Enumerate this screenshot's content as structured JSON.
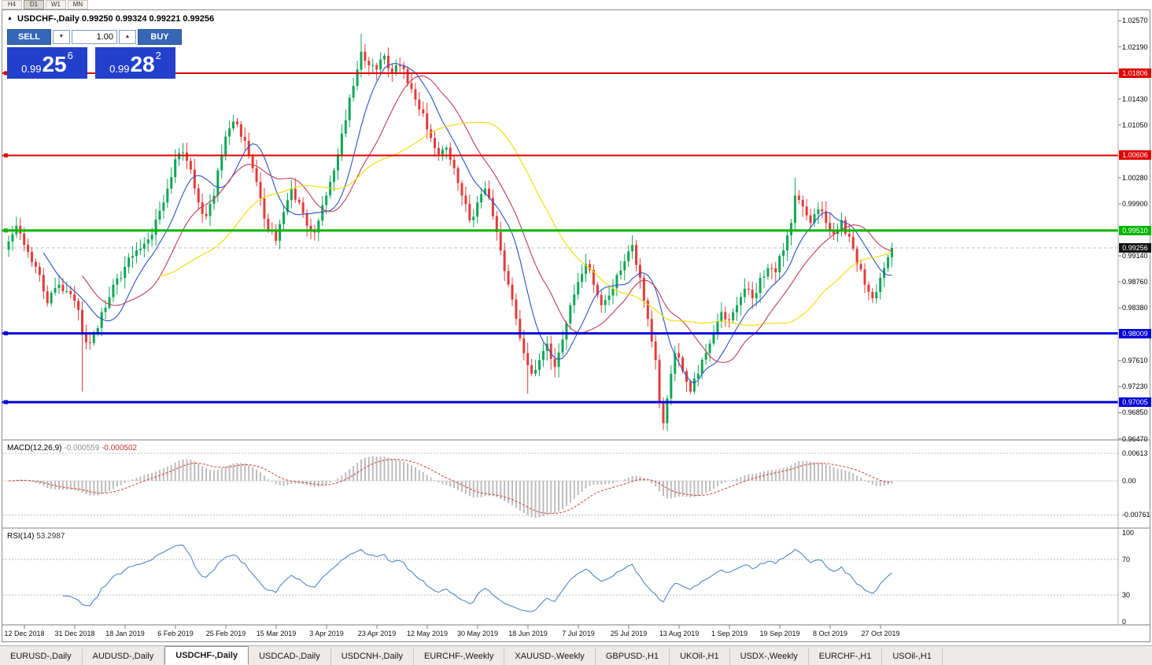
{
  "window": {
    "periods": {
      "items": [
        "H4",
        "D1",
        "W1",
        "MN"
      ],
      "active": "D1"
    }
  },
  "icons": {
    "dropdown_arrow": "▼",
    "spinner_arrow": "▲"
  },
  "header": {
    "collapse_icon": "▲",
    "symbol_title": "USDCHF-,Daily",
    "ohlc": "0.99250 0.99324 0.99221 0.99256"
  },
  "trade_panel": {
    "sell_label": "SELL",
    "buy_label": "BUY",
    "lot": "1.00",
    "sell_price": {
      "base": "0.99",
      "pips": "25",
      "frac": "6"
    },
    "buy_price": {
      "base": "0.99",
      "pips": "28",
      "frac": "2"
    }
  },
  "price_axis": {
    "ticks": [
      {
        "label": "1.02570",
        "value": 1.0257
      },
      {
        "label": "1.02190",
        "value": 1.0219
      },
      {
        "label": "1.01430",
        "value": 1.0143
      },
      {
        "label": "1.01050",
        "value": 1.0105
      },
      {
        "label": "1.00280",
        "value": 1.0028
      },
      {
        "label": "0.99900",
        "value": 0.999
      },
      {
        "label": "0.99140",
        "value": 0.9914
      },
      {
        "label": "0.98760",
        "value": 0.9876
      },
      {
        "label": "0.98380",
        "value": 0.9838
      },
      {
        "label": "0.97610",
        "value": 0.9761
      },
      {
        "label": "0.97230",
        "value": 0.9723
      },
      {
        "label": "0.96850",
        "value": 0.9685
      },
      {
        "label": "0.96470",
        "value": 0.9647
      }
    ]
  },
  "levels": [
    {
      "label": "1.01806",
      "value": 1.01806,
      "color": "#E10000",
      "thickness": 2
    },
    {
      "label": "1.00606",
      "value": 1.00606,
      "color": "#E10000",
      "thickness": 2
    },
    {
      "label": "0.99510",
      "value": 0.9951,
      "color": "#00B500",
      "thickness": 3
    },
    {
      "label": "0.98009",
      "value": 0.98009,
      "color": "#0000D8",
      "thickness": 3
    },
    {
      "label": "0.97005",
      "value": 0.97005,
      "color": "#0000D8",
      "thickness": 3
    }
  ],
  "bid": {
    "label": "0.99256",
    "value": 0.99256
  },
  "macd_panel": {
    "title": "MACD(12,26,9)",
    "value_main": "-0.000559",
    "value_signal": "-0.000502",
    "axis": [
      {
        "label": "0.00613",
        "value": 0.00613
      },
      {
        "label": "0.00",
        "value": 0
      },
      {
        "label": "-0.00761",
        "value": -0.00761
      }
    ]
  },
  "rsi_panel": {
    "title": "RSI(14)",
    "value": "53.2987",
    "axis_top": "100",
    "axis_70": "70",
    "axis_30": "30",
    "axis_bottom": "0"
  },
  "dates": [
    "12 Dec 2018",
    "31 Dec 2018",
    "18 Jan 2019",
    "6 Feb 2019",
    "25 Feb 2019",
    "15 Mar 2019",
    "3 Apr 2019",
    "23 Apr 2019",
    "12 May 2019",
    "30 May 2019",
    "18 Jun 2019",
    "7 Jul 2019",
    "25 Jul 2019",
    "13 Aug 2019",
    "1 Sep 2019",
    "19 Sep 2019",
    "8 Oct 2019",
    "27 Oct 2019"
  ],
  "tabs": {
    "active": "USDCHF-,Daily",
    "items": [
      "EURUSD-,Daily",
      "AUDUSD-,Daily",
      "USDCHF-,Daily",
      "USDCAD-,Daily",
      "USDCNH-,Daily",
      "EURCHF-,Weekly",
      "XAUUSD-,Weekly",
      "GBPUSD-,H1",
      "UKOil-,H1",
      "USDX-,Weekly",
      "EURCHF-,H1",
      "USOil-,H1"
    ]
  },
  "chart_data": {
    "type": "candlestick",
    "symbol": "USDCHF-",
    "timeframe": "Daily",
    "bars": 229,
    "last_close": 0.99256,
    "price_range": [
      0.9647,
      1.0257
    ],
    "up_color": "#0FA656",
    "down_color": "#E23B3B",
    "bid_line_color": "#C2C2C2",
    "close_waypoints": [
      [
        0,
        0.9935
      ],
      [
        2,
        0.9958
      ],
      [
        4,
        0.993
      ],
      [
        7,
        0.9898
      ],
      [
        10,
        0.9845
      ],
      [
        13,
        0.9872
      ],
      [
        16,
        0.9858
      ],
      [
        18,
        0.9835
      ],
      [
        19,
        0.98
      ],
      [
        20,
        0.9788
      ],
      [
        22,
        0.98
      ],
      [
        24,
        0.9832
      ],
      [
        27,
        0.9872
      ],
      [
        30,
        0.9898
      ],
      [
        33,
        0.9922
      ],
      [
        36,
        0.9938
      ],
      [
        39,
        0.998
      ],
      [
        41,
        1.0012
      ],
      [
        43,
        1.0055
      ],
      [
        45,
        1.0065
      ],
      [
        47,
        1.004
      ],
      [
        49,
        0.9992
      ],
      [
        51,
        0.9972
      ],
      [
        53,
        1.0002
      ],
      [
        55,
        1.0062
      ],
      [
        57,
        1.01
      ],
      [
        59,
        1.0106
      ],
      [
        61,
        1.0082
      ],
      [
        63,
        1.0042
      ],
      [
        65,
        0.9998
      ],
      [
        67,
        0.9952
      ],
      [
        69,
        0.9936
      ],
      [
        71,
        0.9978
      ],
      [
        73,
        1.0012
      ],
      [
        75,
        0.9992
      ],
      [
        77,
        0.9958
      ],
      [
        79,
        0.9948
      ],
      [
        81,
        0.9988
      ],
      [
        83,
        1.0022
      ],
      [
        85,
        1.0062
      ],
      [
        87,
        1.0112
      ],
      [
        89,
        1.0162
      ],
      [
        91,
        1.0212
      ],
      [
        93,
        1.0192
      ],
      [
        95,
        1.0186
      ],
      [
        97,
        1.0206
      ],
      [
        99,
        1.0182
      ],
      [
        101,
        1.0192
      ],
      [
        103,
        1.0166
      ],
      [
        105,
        1.0142
      ],
      [
        107,
        1.0122
      ],
      [
        109,
        1.0086
      ],
      [
        111,
        1.0062
      ],
      [
        113,
        1.0072
      ],
      [
        115,
        1.0042
      ],
      [
        117,
        1.0002
      ],
      [
        119,
        0.9966
      ],
      [
        121,
        0.9992
      ],
      [
        123,
        1.0012
      ],
      [
        125,
        0.9972
      ],
      [
        127,
        0.9922
      ],
      [
        129,
        0.9872
      ],
      [
        131,
        0.9822
      ],
      [
        133,
        0.9772
      ],
      [
        135,
        0.9742
      ],
      [
        137,
        0.9762
      ],
      [
        139,
        0.9786
      ],
      [
        141,
        0.9752
      ],
      [
        143,
        0.9792
      ],
      [
        145,
        0.9842
      ],
      [
        147,
        0.9876
      ],
      [
        149,
        0.9902
      ],
      [
        151,
        0.9872
      ],
      [
        153,
        0.9842
      ],
      [
        155,
        0.9856
      ],
      [
        157,
        0.9886
      ],
      [
        159,
        0.9906
      ],
      [
        161,
        0.993
      ],
      [
        163,
        0.9882
      ],
      [
        165,
        0.9822
      ],
      [
        167,
        0.9762
      ],
      [
        168,
        0.9702
      ],
      [
        169,
        0.967
      ],
      [
        170,
        0.9706
      ],
      [
        171,
        0.9742
      ],
      [
        172,
        0.9772
      ],
      [
        174,
        0.9746
      ],
      [
        176,
        0.9716
      ],
      [
        178,
        0.9742
      ],
      [
        180,
        0.9772
      ],
      [
        182,
        0.9802
      ],
      [
        184,
        0.9832
      ],
      [
        186,
        0.982
      ],
      [
        188,
        0.9842
      ],
      [
        190,
        0.9866
      ],
      [
        192,
        0.9852
      ],
      [
        194,
        0.9882
      ],
      [
        196,
        0.9896
      ],
      [
        198,
        0.989
      ],
      [
        200,
        0.9922
      ],
      [
        202,
        0.9962
      ],
      [
        203,
        1.0002
      ],
      [
        205,
        0.9986
      ],
      [
        207,
        0.9962
      ],
      [
        209,
        0.9982
      ],
      [
        211,
        0.9962
      ],
      [
        213,
        0.9946
      ],
      [
        215,
        0.9966
      ],
      [
        217,
        0.9942
      ],
      [
        219,
        0.9902
      ],
      [
        221,
        0.9872
      ],
      [
        223,
        0.9852
      ],
      [
        225,
        0.9882
      ],
      [
        226,
        0.9896
      ],
      [
        227,
        0.9912
      ],
      [
        228,
        0.99256
      ]
    ],
    "wick_overrides": {
      "19": {
        "l": 0.9716
      },
      "91": {
        "h": 1.0238
      },
      "134": {
        "l": 0.9713
      },
      "169": {
        "l": 0.966
      },
      "203": {
        "h": 1.0028
      }
    },
    "moving_averages": [
      {
        "period": 10,
        "color": "#2B50C8"
      },
      {
        "period": 20,
        "color": "#C23B55"
      },
      {
        "period": 40,
        "color": "#EFDC00"
      }
    ],
    "macd": {
      "fast": 12,
      "slow": 26,
      "signal": 9,
      "histogram_color": "#BDBDBD",
      "signal_color": "#D23B3B"
    },
    "rsi": {
      "period": 14,
      "color": "#4F86C6",
      "levels": [
        70,
        30
      ]
    }
  }
}
